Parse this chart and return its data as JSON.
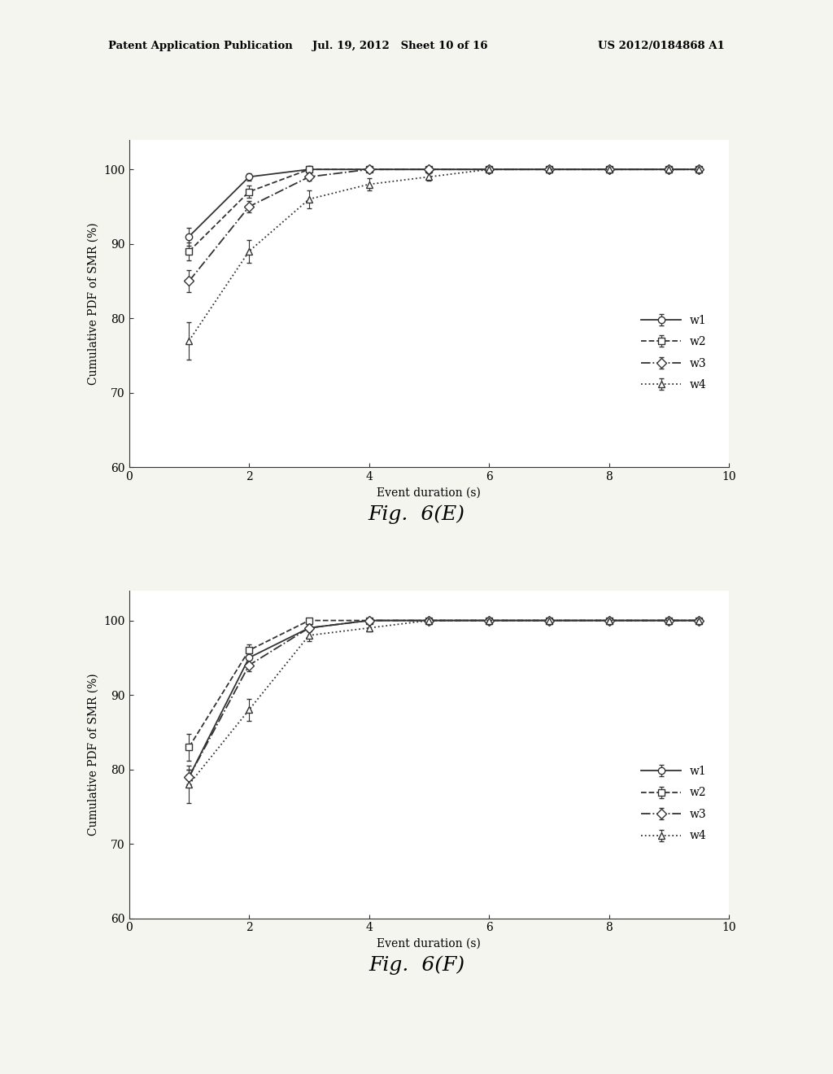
{
  "top_chart": {
    "title": "Fig.  6(E)",
    "series": {
      "w1": {
        "x": [
          1,
          2,
          3,
          4,
          5,
          6,
          7,
          8,
          9,
          9.5
        ],
        "y": [
          91,
          99,
          100,
          100,
          100,
          100,
          100,
          100,
          100,
          100
        ],
        "yerr": [
          1.2,
          0.5,
          0.3,
          0.3,
          0.3,
          0.3,
          0.3,
          0.3,
          0.3,
          0.3
        ],
        "marker": "o",
        "linestyle": "-"
      },
      "w2": {
        "x": [
          1,
          2,
          3,
          4,
          5,
          6,
          7,
          8,
          9,
          9.5
        ],
        "y": [
          89,
          97,
          100,
          100,
          100,
          100,
          100,
          100,
          100,
          100
        ],
        "yerr": [
          1.2,
          0.8,
          0.5,
          0.3,
          0.3,
          0.3,
          0.3,
          0.3,
          0.3,
          0.3
        ],
        "marker": "s",
        "linestyle": "--"
      },
      "w3": {
        "x": [
          1,
          2,
          3,
          4,
          5,
          6,
          7,
          8,
          9,
          9.5
        ],
        "y": [
          85,
          95,
          99,
          100,
          100,
          100,
          100,
          100,
          100,
          100
        ],
        "yerr": [
          1.5,
          0.8,
          0.5,
          0.3,
          0.3,
          0.3,
          0.3,
          0.3,
          0.3,
          0.3
        ],
        "marker": "D",
        "linestyle": "-."
      },
      "w4": {
        "x": [
          1,
          2,
          3,
          4,
          5,
          6,
          7,
          8,
          9,
          9.5
        ],
        "y": [
          77,
          89,
          96,
          98,
          99,
          100,
          100,
          100,
          100,
          100
        ],
        "yerr": [
          2.5,
          1.5,
          1.2,
          0.8,
          0.5,
          0.3,
          0.3,
          0.3,
          0.3,
          0.3
        ],
        "marker": "^",
        "linestyle": ":"
      }
    },
    "xlabel": "Event duration (s)",
    "ylabel": "Cumulative PDF of SMR (%)",
    "xlim": [
      0,
      10
    ],
    "ylim": [
      60,
      104
    ],
    "yticks": [
      60,
      70,
      80,
      90,
      100
    ],
    "xticks": [
      0,
      2,
      4,
      6,
      8,
      10
    ]
  },
  "bottom_chart": {
    "title": "Fig.  6(F)",
    "series": {
      "w1": {
        "x": [
          1,
          2,
          3,
          4,
          5,
          6,
          7,
          8,
          9,
          9.5
        ],
        "y": [
          79,
          95,
          99,
          100,
          100,
          100,
          100,
          100,
          100,
          100
        ],
        "yerr": [
          1.0,
          0.8,
          0.5,
          0.3,
          0.3,
          0.3,
          0.3,
          0.3,
          0.3,
          0.3
        ],
        "marker": "o",
        "linestyle": "-"
      },
      "w2": {
        "x": [
          1,
          2,
          3,
          4,
          5,
          6,
          7,
          8,
          9,
          9.5
        ],
        "y": [
          83,
          96,
          100,
          100,
          100,
          100,
          100,
          100,
          100,
          100
        ],
        "yerr": [
          1.8,
          0.8,
          0.3,
          0.3,
          0.3,
          0.3,
          0.3,
          0.3,
          0.3,
          0.3
        ],
        "marker": "s",
        "linestyle": "--"
      },
      "w3": {
        "x": [
          1,
          2,
          3,
          4,
          5,
          6,
          7,
          8,
          9,
          9.5
        ],
        "y": [
          79,
          94,
          99,
          100,
          100,
          100,
          100,
          100,
          100,
          100
        ],
        "yerr": [
          1.0,
          0.8,
          0.5,
          0.3,
          0.3,
          0.3,
          0.3,
          0.3,
          0.3,
          0.3
        ],
        "marker": "D",
        "linestyle": "-."
      },
      "w4": {
        "x": [
          1,
          2,
          3,
          4,
          5,
          6,
          7,
          8,
          9,
          9.5
        ],
        "y": [
          78,
          88,
          98,
          99,
          100,
          100,
          100,
          100,
          100,
          100
        ],
        "yerr": [
          2.5,
          1.5,
          0.8,
          0.5,
          0.3,
          0.3,
          0.3,
          0.3,
          0.3,
          0.3
        ],
        "marker": "^",
        "linestyle": ":"
      }
    },
    "xlabel": "Event duration (s)",
    "ylabel": "Cumulative PDF of SMR (%)",
    "xlim": [
      0,
      10
    ],
    "ylim": [
      60,
      104
    ],
    "yticks": [
      60,
      70,
      80,
      90,
      100
    ],
    "xticks": [
      0,
      2,
      4,
      6,
      8,
      10
    ]
  },
  "header_left": "Patent Application Publication",
  "header_center": "Jul. 19, 2012   Sheet 10 of 16",
  "header_right": "US 2012/0184868 A1",
  "background_color": "#f5f5f0",
  "plot_bg_color": "#ffffff",
  "marker_size": 6,
  "linewidth": 1.3,
  "font_size": 10,
  "title_font_size": 18,
  "legend_font_size": 10,
  "axis_linewidth": 0.8
}
